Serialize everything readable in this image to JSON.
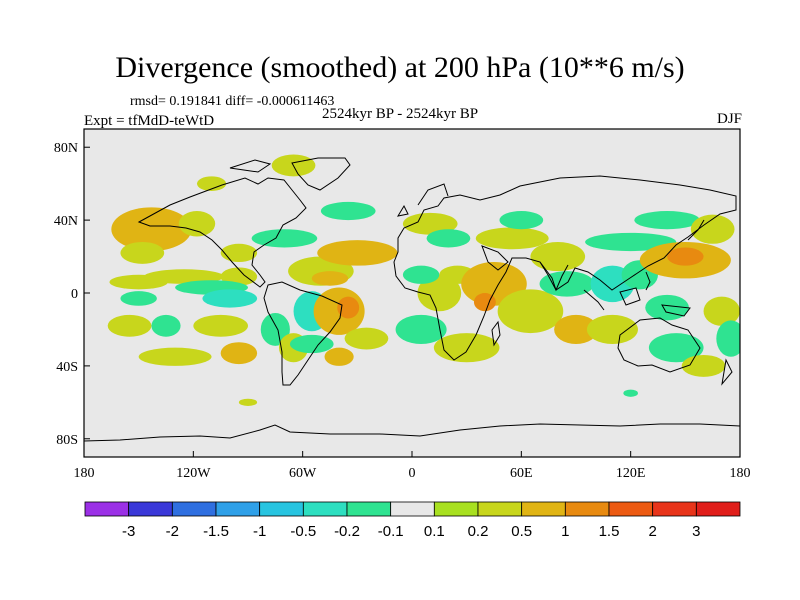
{
  "title": "Divergence (smoothed) at 200 hPa (10**6 m/s)",
  "stats": "rmsd= 0.191841 diff= -0.000611463",
  "experiment": "Expt = tfMdD-teWtD",
  "period": "2524kyr BP - 2524kyr BP",
  "season": "DJF",
  "colors": {
    "land_background": "#e8e8e8",
    "coastline": "#000000",
    "frame": "#000000"
  },
  "chart_data": {
    "type": "heatmap",
    "projection": "cylindrical equidistant",
    "lon_range": [
      -180,
      180
    ],
    "lat_range": [
      -90,
      90
    ],
    "x_ticks": [
      {
        "value": -180,
        "label": "180"
      },
      {
        "value": -120,
        "label": "120W"
      },
      {
        "value": -60,
        "label": "60W"
      },
      {
        "value": 0,
        "label": "0"
      },
      {
        "value": 60,
        "label": "60E"
      },
      {
        "value": 120,
        "label": "120E"
      },
      {
        "value": 180,
        "label": "180"
      }
    ],
    "y_ticks": [
      {
        "value": 80,
        "label": "80N"
      },
      {
        "value": 40,
        "label": "40N"
      },
      {
        "value": 0,
        "label": "0"
      },
      {
        "value": -40,
        "label": "40S"
      },
      {
        "value": -80,
        "label": "80S"
      }
    ],
    "colorbar": {
      "levels": [
        "-3",
        "-2",
        "-1.5",
        "-1",
        "-0.5",
        "-0.2",
        "-0.1",
        "0.1",
        "0.2",
        "0.5",
        "1",
        "1.5",
        "2",
        "3"
      ],
      "colors": [
        "#9b30e6",
        "#3a38d8",
        "#2f6fe0",
        "#2fa0e8",
        "#27c4e0",
        "#2ddfc0",
        "#2fe391",
        "#e8e8e8",
        "#a8e020",
        "#c8d61c",
        "#e0b414",
        "#e88a10",
        "#ec5a12",
        "#e8341a",
        "#e01e1a"
      ]
    },
    "features": [
      {
        "lon": -143,
        "lat": 35,
        "rx": 22,
        "ry": 12,
        "value": 0.5
      },
      {
        "lon": -148,
        "lat": 22,
        "rx": 12,
        "ry": 6,
        "value": 0.2
      },
      {
        "lon": -118,
        "lat": 38,
        "rx": 10,
        "ry": 7,
        "value": 0.2
      },
      {
        "lon": -150,
        "lat": 6,
        "rx": 16,
        "ry": 4,
        "value": 0.2
      },
      {
        "lon": -125,
        "lat": 9,
        "rx": 22,
        "ry": 4,
        "value": 0.2
      },
      {
        "lon": -95,
        "lat": 9,
        "rx": 10,
        "ry": 5,
        "value": 0.2
      },
      {
        "lon": -110,
        "lat": 3,
        "rx": 20,
        "ry": 4,
        "value": -0.2
      },
      {
        "lon": -150,
        "lat": -3,
        "rx": 10,
        "ry": 4,
        "value": -0.2
      },
      {
        "lon": -100,
        "lat": -3,
        "rx": 15,
        "ry": 5,
        "value": -0.5
      },
      {
        "lon": -155,
        "lat": -18,
        "rx": 12,
        "ry": 6,
        "value": 0.2
      },
      {
        "lon": -135,
        "lat": -18,
        "rx": 8,
        "ry": 6,
        "value": -0.2
      },
      {
        "lon": -105,
        "lat": -18,
        "rx": 15,
        "ry": 6,
        "value": 0.2
      },
      {
        "lon": -130,
        "lat": -35,
        "rx": 20,
        "ry": 5,
        "value": 0.2
      },
      {
        "lon": -95,
        "lat": -33,
        "rx": 10,
        "ry": 6,
        "value": 0.5
      },
      {
        "lon": -75,
        "lat": -20,
        "rx": 8,
        "ry": 9,
        "value": -0.2
      },
      {
        "lon": -55,
        "lat": -10,
        "rx": 10,
        "ry": 11,
        "value": -0.5
      },
      {
        "lon": -65,
        "lat": -30,
        "rx": 8,
        "ry": 8,
        "value": 0.2
      },
      {
        "lon": -40,
        "lat": -10,
        "rx": 14,
        "ry": 13,
        "value": 0.5
      },
      {
        "lon": -35,
        "lat": -8,
        "rx": 6,
        "ry": 6,
        "value": 1
      },
      {
        "lon": -55,
        "lat": -28,
        "rx": 12,
        "ry": 5,
        "value": -0.2
      },
      {
        "lon": -40,
        "lat": -35,
        "rx": 8,
        "ry": 5,
        "value": 0.5
      },
      {
        "lon": -25,
        "lat": -25,
        "rx": 12,
        "ry": 6,
        "value": 0.2
      },
      {
        "lon": -50,
        "lat": 12,
        "rx": 18,
        "ry": 8,
        "value": 0.2
      },
      {
        "lon": -45,
        "lat": 8,
        "rx": 10,
        "ry": 4,
        "value": 0.5
      },
      {
        "lon": -30,
        "lat": 22,
        "rx": 22,
        "ry": 7,
        "value": 0.5
      },
      {
        "lon": -70,
        "lat": 30,
        "rx": 18,
        "ry": 5,
        "value": -0.2
      },
      {
        "lon": -95,
        "lat": 22,
        "rx": 10,
        "ry": 5,
        "value": 0.2
      },
      {
        "lon": -65,
        "lat": 70,
        "rx": 12,
        "ry": 6,
        "value": 0.2
      },
      {
        "lon": -110,
        "lat": 60,
        "rx": 8,
        "ry": 4,
        "value": 0.2
      },
      {
        "lon": -35,
        "lat": 45,
        "rx": 15,
        "ry": 5,
        "value": -0.2
      },
      {
        "lon": 10,
        "lat": 38,
        "rx": 15,
        "ry": 6,
        "value": 0.2
      },
      {
        "lon": 20,
        "lat": 30,
        "rx": 12,
        "ry": 5,
        "value": -0.2
      },
      {
        "lon": 15,
        "lat": 0,
        "rx": 12,
        "ry": 10,
        "value": 0.2
      },
      {
        "lon": 5,
        "lat": -20,
        "rx": 14,
        "ry": 8,
        "value": -0.2
      },
      {
        "lon": 5,
        "lat": 10,
        "rx": 10,
        "ry": 5,
        "value": -0.2
      },
      {
        "lon": 25,
        "lat": 10,
        "rx": 10,
        "ry": 5,
        "value": 0.2
      },
      {
        "lon": 30,
        "lat": -30,
        "rx": 18,
        "ry": 8,
        "value": 0.2
      },
      {
        "lon": 45,
        "lat": 5,
        "rx": 18,
        "ry": 12,
        "value": 0.5
      },
      {
        "lon": 40,
        "lat": -5,
        "rx": 6,
        "ry": 5,
        "value": 1
      },
      {
        "lon": 65,
        "lat": -10,
        "rx": 18,
        "ry": 12,
        "value": 0.2
      },
      {
        "lon": 55,
        "lat": 30,
        "rx": 20,
        "ry": 6,
        "value": 0.2
      },
      {
        "lon": 60,
        "lat": 40,
        "rx": 12,
        "ry": 5,
        "value": -0.2
      },
      {
        "lon": 80,
        "lat": 20,
        "rx": 15,
        "ry": 8,
        "value": 0.2
      },
      {
        "lon": 85,
        "lat": 5,
        "rx": 15,
        "ry": 7,
        "value": -0.2
      },
      {
        "lon": 90,
        "lat": -20,
        "rx": 12,
        "ry": 8,
        "value": 0.5
      },
      {
        "lon": 110,
        "lat": 5,
        "rx": 12,
        "ry": 10,
        "value": -0.5
      },
      {
        "lon": 125,
        "lat": 10,
        "rx": 10,
        "ry": 8,
        "value": -0.2
      },
      {
        "lon": 110,
        "lat": -20,
        "rx": 14,
        "ry": 8,
        "value": 0.2
      },
      {
        "lon": 120,
        "lat": 28,
        "rx": 25,
        "ry": 5,
        "value": -0.2
      },
      {
        "lon": 140,
        "lat": 40,
        "rx": 18,
        "ry": 5,
        "value": -0.2
      },
      {
        "lon": 150,
        "lat": 18,
        "rx": 25,
        "ry": 10,
        "value": 0.5
      },
      {
        "lon": 150,
        "lat": 20,
        "rx": 10,
        "ry": 5,
        "value": 1
      },
      {
        "lon": 165,
        "lat": 35,
        "rx": 12,
        "ry": 8,
        "value": 0.2
      },
      {
        "lon": 140,
        "lat": -8,
        "rx": 12,
        "ry": 7,
        "value": -0.2
      },
      {
        "lon": 170,
        "lat": -10,
        "rx": 10,
        "ry": 8,
        "value": 0.2
      },
      {
        "lon": 145,
        "lat": -30,
        "rx": 15,
        "ry": 8,
        "value": -0.2
      },
      {
        "lon": 160,
        "lat": -40,
        "rx": 12,
        "ry": 6,
        "value": 0.2
      },
      {
        "lon": 175,
        "lat": -25,
        "rx": 8,
        "ry": 10,
        "value": -0.2
      },
      {
        "lon": 120,
        "lat": -55,
        "rx": 4,
        "ry": 2,
        "value": -0.2
      },
      {
        "lon": -90,
        "lat": -60,
        "rx": 5,
        "ry": 2,
        "value": 0.2
      }
    ]
  }
}
